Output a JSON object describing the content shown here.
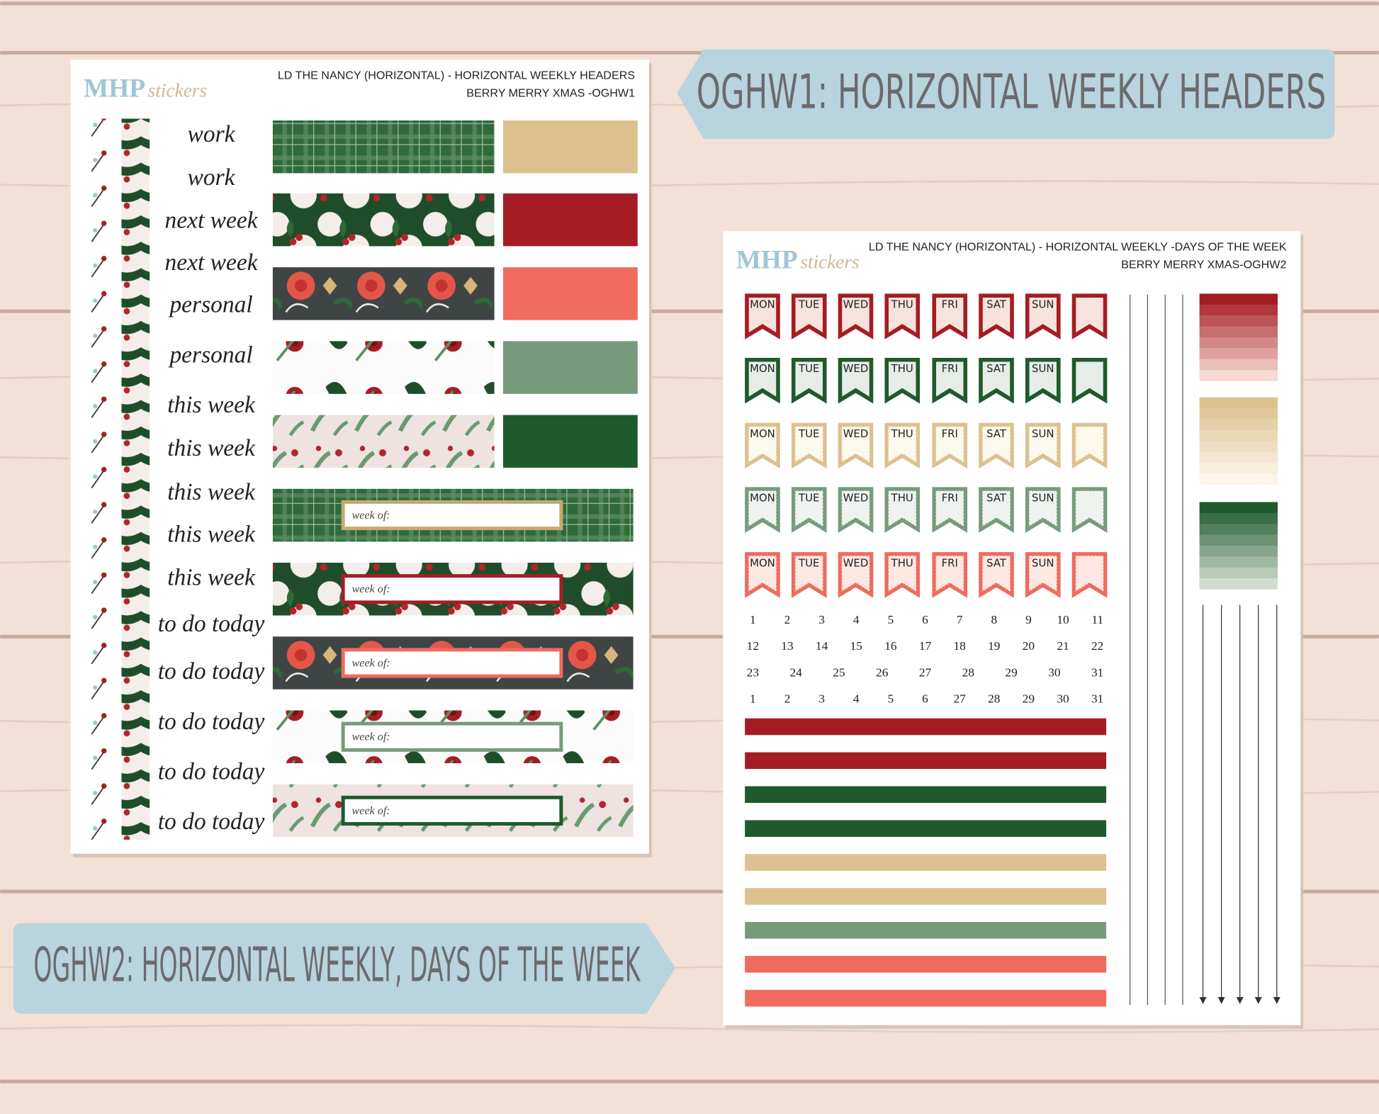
{
  "banners": [
    "OGHW1: HORIZONTAL WEEKLY HEADERS",
    "OGHW2: HORIZONTAL WEEKLY, DAYS OF THE WEEK"
  ],
  "sheets": [
    {
      "logo": {
        "brand": "MHP",
        "script": "stickers"
      },
      "header": [
        "LD THE NANCY (HORIZONTAL) - HORIZONTAL WEEKLY HEADERS",
        "BERRY MERRY XMAS -OGHW1"
      ],
      "labels": [
        "work",
        "work",
        "next week",
        "next week",
        "personal",
        "personal",
        "this week",
        "this week",
        "this week",
        "this week",
        "this week",
        "to do today",
        "to do today",
        "to do today",
        "to do today",
        "to do today"
      ],
      "week_of": [
        "week of:",
        "week of:",
        "week of:",
        "week of:",
        "week of:"
      ]
    },
    {
      "logo": {
        "brand": "MHP",
        "script": "stickers"
      },
      "header": [
        "LD THE NANCY (HORIZONTAL) - HORIZONTAL WEEKLY -DAYS OF THE WEEK",
        "BERRY MERRY XMAS-OGHW2"
      ],
      "days": [
        "MON",
        "TUE",
        "WED",
        "THU",
        "FRI",
        "SAT",
        "SUN"
      ],
      "dates": [
        [
          1,
          2,
          3,
          4,
          5,
          6,
          7,
          8,
          9,
          10,
          11
        ],
        [
          12,
          13,
          14,
          15,
          16,
          17,
          18,
          19,
          20,
          21,
          22
        ],
        [
          23,
          24,
          25,
          26,
          27,
          28,
          29,
          30,
          31
        ],
        [
          1,
          2,
          3,
          4,
          5,
          6,
          27,
          28,
          29,
          30,
          31
        ]
      ]
    }
  ]
}
